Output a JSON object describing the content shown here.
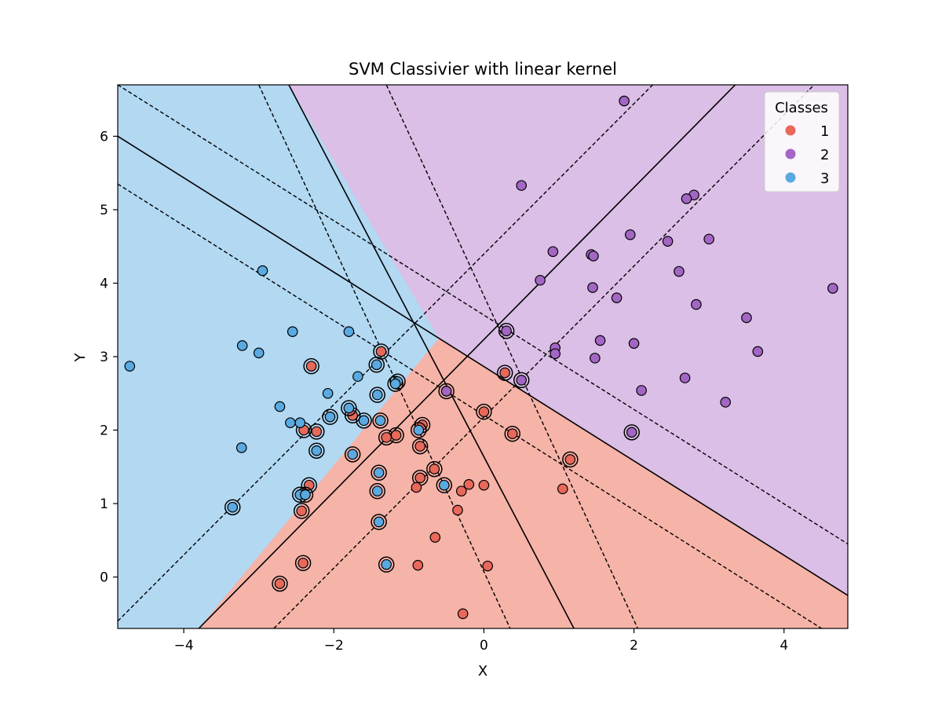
{
  "chart_data": {
    "type": "scatter",
    "title": "SVM Classivier with linear kernel",
    "xlabel": "X",
    "ylabel": "Y",
    "xlim": [
      -4.88,
      4.85
    ],
    "ylim": [
      -0.7,
      6.7
    ],
    "xticks": [
      -4,
      -2,
      0,
      2,
      4
    ],
    "yticks": [
      0,
      1,
      2,
      3,
      4,
      5,
      6
    ],
    "grid": false,
    "legend": {
      "title": "Classes",
      "placement": "top-right",
      "entries": [
        {
          "label": "1",
          "color": "#e8685a"
        },
        {
          "label": "2",
          "color": "#a366c4"
        },
        {
          "label": "3",
          "color": "#5aa9e1"
        }
      ]
    },
    "region_colors": {
      "1": "#f6b3a8",
      "2": "#dbbfe6",
      "3": "#b2d8f2"
    },
    "boundary_lines": {
      "solid": [
        [
          [
            -2.6,
            6.7
          ],
          [
            1.2,
            -0.7
          ]
        ],
        [
          [
            -4.88,
            6.0
          ],
          [
            4.85,
            -0.25
          ]
        ],
        [
          [
            -3.8,
            -0.7
          ],
          [
            3.35,
            6.7
          ]
        ]
      ],
      "dashed": [
        [
          [
            -3.0,
            6.7
          ],
          [
            0.35,
            -0.7
          ]
        ],
        [
          [
            -1.3,
            6.7
          ],
          [
            2.05,
            -0.7
          ]
        ],
        [
          [
            -4.88,
            6.7
          ],
          [
            4.85,
            0.45
          ]
        ],
        [
          [
            -4.88,
            5.35
          ],
          [
            4.5,
            -0.7
          ]
        ],
        [
          [
            -4.88,
            -0.6
          ],
          [
            2.25,
            6.7
          ]
        ],
        [
          [
            -2.8,
            -0.7
          ],
          [
            4.4,
            6.7
          ]
        ]
      ]
    },
    "series": [
      {
        "name": "1",
        "color": "#e8685a",
        "points": [
          [
            -2.3,
            2.87
          ],
          [
            -1.37,
            3.07
          ],
          [
            0.28,
            2.78
          ],
          [
            0.0,
            2.25
          ],
          [
            -0.5,
            2.53
          ],
          [
            -2.4,
            2.0
          ],
          [
            -2.23,
            1.98
          ],
          [
            -1.3,
            1.9
          ],
          [
            -1.17,
            1.93
          ],
          [
            -0.82,
            2.07
          ],
          [
            -0.85,
            1.78
          ],
          [
            0.38,
            1.95
          ],
          [
            -1.75,
            2.2
          ],
          [
            1.15,
            1.6
          ],
          [
            -0.66,
            1.47
          ],
          [
            -0.85,
            1.35
          ],
          [
            -0.9,
            1.22
          ],
          [
            -0.3,
            1.17
          ],
          [
            -0.2,
            1.26
          ],
          [
            0.0,
            1.25
          ],
          [
            1.05,
            1.2
          ],
          [
            -2.33,
            1.25
          ],
          [
            -2.43,
            0.9
          ],
          [
            -0.35,
            0.91
          ],
          [
            -0.65,
            0.54
          ],
          [
            -0.88,
            0.16
          ],
          [
            0.05,
            0.15
          ],
          [
            -2.41,
            0.19
          ],
          [
            -2.72,
            -0.09
          ],
          [
            -0.28,
            -0.5
          ]
        ],
        "support_vectors": [
          [
            -2.3,
            2.87
          ],
          [
            -1.37,
            3.07
          ],
          [
            0.28,
            2.78
          ],
          [
            0.0,
            2.25
          ],
          [
            -2.4,
            2.0
          ],
          [
            -2.23,
            1.98
          ],
          [
            -1.3,
            1.9
          ],
          [
            -1.17,
            1.93
          ],
          [
            -0.82,
            2.07
          ],
          [
            -0.85,
            1.78
          ],
          [
            0.38,
            1.95
          ],
          [
            -1.75,
            2.2
          ],
          [
            1.15,
            1.6
          ],
          [
            -0.66,
            1.47
          ],
          [
            -0.85,
            1.35
          ],
          [
            -2.33,
            1.25
          ],
          [
            -2.43,
            0.9
          ],
          [
            -2.41,
            0.19
          ],
          [
            -2.72,
            -0.09
          ]
        ]
      },
      {
        "name": "2",
        "color": "#a366c4",
        "points": [
          [
            1.87,
            6.48
          ],
          [
            0.5,
            5.33
          ],
          [
            2.8,
            5.2
          ],
          [
            2.7,
            5.15
          ],
          [
            1.95,
            4.66
          ],
          [
            2.45,
            4.57
          ],
          [
            3.0,
            4.6
          ],
          [
            0.92,
            4.43
          ],
          [
            1.43,
            4.39
          ],
          [
            1.46,
            4.37
          ],
          [
            2.6,
            4.16
          ],
          [
            0.75,
            4.04
          ],
          [
            1.45,
            3.94
          ],
          [
            1.77,
            3.8
          ],
          [
            2.83,
            3.71
          ],
          [
            4.65,
            3.93
          ],
          [
            3.5,
            3.53
          ],
          [
            0.3,
            3.35
          ],
          [
            1.55,
            3.22
          ],
          [
            0.95,
            3.12
          ],
          [
            2.0,
            3.18
          ],
          [
            3.65,
            3.07
          ],
          [
            0.95,
            3.04
          ],
          [
            1.48,
            2.98
          ],
          [
            2.68,
            2.71
          ],
          [
            0.5,
            2.68
          ],
          [
            2.1,
            2.54
          ],
          [
            3.22,
            2.38
          ],
          [
            1.97,
            1.97
          ],
          [
            -0.5,
            2.53
          ]
        ],
        "support_vectors": [
          [
            0.3,
            3.35
          ],
          [
            0.5,
            2.68
          ],
          [
            1.97,
            1.97
          ],
          [
            -0.5,
            2.53
          ]
        ]
      },
      {
        "name": "3",
        "color": "#5aa9e1",
        "points": [
          [
            -2.95,
            4.17
          ],
          [
            -2.55,
            3.34
          ],
          [
            -1.8,
            3.34
          ],
          [
            -3.22,
            3.15
          ],
          [
            -3.0,
            3.05
          ],
          [
            -4.72,
            2.87
          ],
          [
            -1.43,
            2.89
          ],
          [
            -1.68,
            2.73
          ],
          [
            -1.15,
            2.66
          ],
          [
            -1.18,
            2.63
          ],
          [
            -2.08,
            2.5
          ],
          [
            -1.42,
            2.48
          ],
          [
            -2.72,
            2.32
          ],
          [
            -1.8,
            2.3
          ],
          [
            -2.05,
            2.18
          ],
          [
            -2.58,
            2.1
          ],
          [
            -2.45,
            2.1
          ],
          [
            -1.6,
            2.13
          ],
          [
            -1.38,
            2.13
          ],
          [
            -0.87,
            2.0
          ],
          [
            -3.23,
            1.76
          ],
          [
            -2.23,
            1.72
          ],
          [
            -1.75,
            1.67
          ],
          [
            -1.4,
            1.42
          ],
          [
            -0.53,
            1.25
          ],
          [
            -1.42,
            1.17
          ],
          [
            -2.45,
            1.12
          ],
          [
            -2.38,
            1.12
          ],
          [
            -3.35,
            0.95
          ],
          [
            -1.4,
            0.75
          ],
          [
            -1.3,
            0.17
          ]
        ],
        "support_vectors": [
          [
            -1.43,
            2.89
          ],
          [
            -1.15,
            2.66
          ],
          [
            -1.18,
            2.63
          ],
          [
            -2.05,
            2.18
          ],
          [
            -1.42,
            2.48
          ],
          [
            -1.8,
            2.3
          ],
          [
            -1.6,
            2.13
          ],
          [
            -1.38,
            2.13
          ],
          [
            -0.87,
            2.0
          ],
          [
            -2.23,
            1.72
          ],
          [
            -1.75,
            1.67
          ],
          [
            -1.4,
            1.42
          ],
          [
            -0.53,
            1.25
          ],
          [
            -1.42,
            1.17
          ],
          [
            -2.45,
            1.12
          ],
          [
            -2.38,
            1.12
          ],
          [
            -3.35,
            0.95
          ],
          [
            -1.4,
            0.75
          ],
          [
            -1.3,
            0.17
          ]
        ]
      }
    ]
  }
}
